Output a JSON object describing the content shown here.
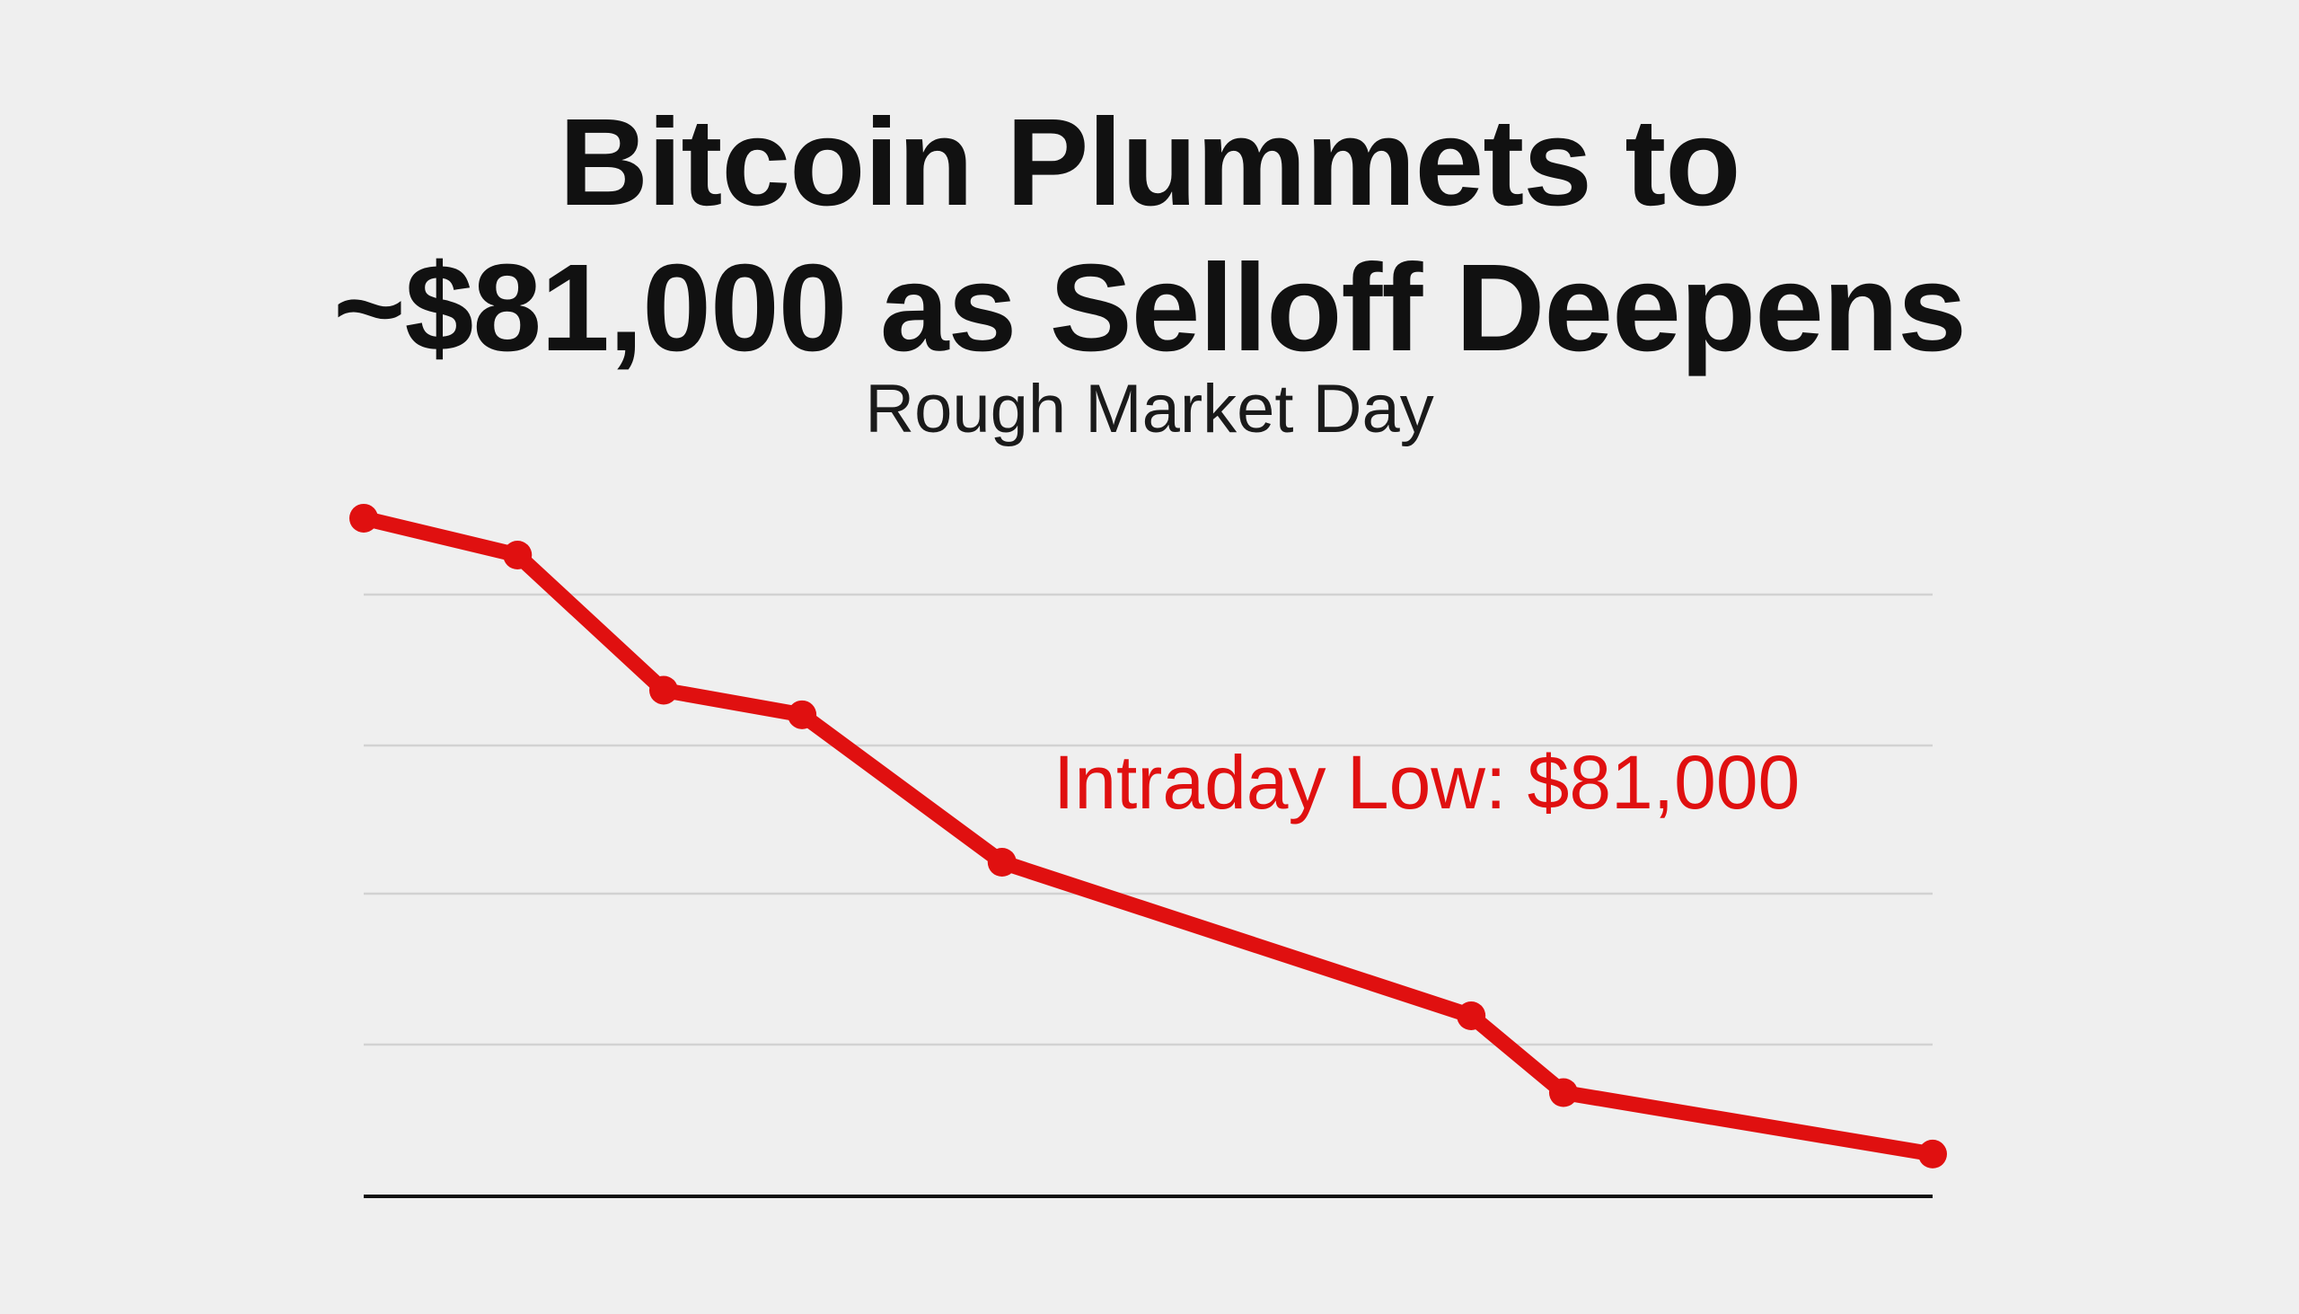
{
  "title_line1": "Bitcoin Plummets to",
  "title_line2": "~$81,000 as Selloff Deepens",
  "subtitle": "Rough Market Day",
  "chart_data": {
    "type": "line",
    "title": "Bitcoin Plummets to ~$81,000 as Selloff Deepens",
    "subtitle": "Rough Market Day",
    "xlabel": "",
    "ylabel": "",
    "grid": true,
    "legend": "none",
    "x": [
      0.0,
      1.0,
      1.95,
      2.85,
      4.15,
      7.2,
      7.8,
      10.2
    ],
    "series": [
      {
        "color": "#e01010",
        "values": [
          1.12,
          1.0,
          0.56,
          0.48,
          0.0,
          -0.5,
          -0.75,
          -0.95
        ]
      }
    ],
    "annotation": {
      "text": "Intraday Low: $81,000",
      "color": "#e01010"
    }
  },
  "colors": {
    "line": "#e01010",
    "grid": "#d2d2d2",
    "axis": "#111111",
    "background": "#efefef"
  }
}
